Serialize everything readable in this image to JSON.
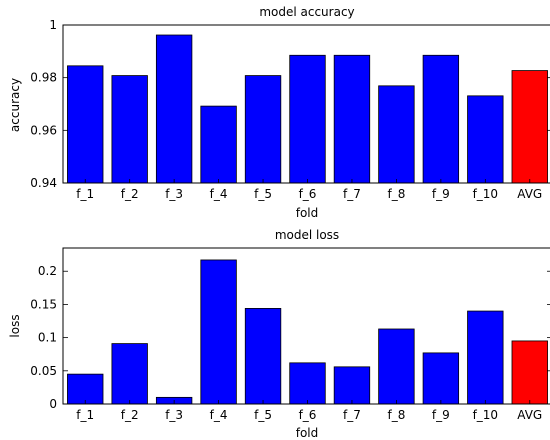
{
  "chart_data": [
    {
      "type": "bar",
      "title": "model accuracy",
      "xlabel": "fold",
      "ylabel": "accuracy",
      "categories": [
        "f_1",
        "f_2",
        "f_3",
        "f_4",
        "f_5",
        "f_6",
        "f_7",
        "f_8",
        "f_9",
        "f_10",
        "AVG"
      ],
      "values": [
        0.9845,
        0.9808,
        0.9962,
        0.9692,
        0.9808,
        0.9885,
        0.9885,
        0.9769,
        0.9885,
        0.9731,
        0.9827
      ],
      "ylim": [
        0.94,
        1.0
      ],
      "yticks": [
        0.94,
        0.96,
        0.98,
        1.0
      ],
      "ytick_labels": [
        "0.94",
        "0.96",
        "0.98",
        "1"
      ],
      "bar_color": "#0000ff",
      "highlight_color": "#ff0000",
      "highlight_category": "AVG",
      "grid": false,
      "legend": "none"
    },
    {
      "type": "bar",
      "title": "model loss",
      "xlabel": "fold",
      "ylabel": "loss",
      "categories": [
        "f_1",
        "f_2",
        "f_3",
        "f_4",
        "f_5",
        "f_6",
        "f_7",
        "f_8",
        "f_9",
        "f_10",
        "AVG"
      ],
      "values": [
        0.045,
        0.091,
        0.01,
        0.217,
        0.144,
        0.062,
        0.056,
        0.113,
        0.077,
        0.14,
        0.095
      ],
      "ylim": [
        0,
        0.235
      ],
      "yticks": [
        0,
        0.05,
        0.1,
        0.15,
        0.2
      ],
      "ytick_labels": [
        "0",
        "0.05",
        "0.1",
        "0.15",
        "0.2"
      ],
      "bar_color": "#0000ff",
      "highlight_color": "#ff0000",
      "highlight_category": "AVG",
      "grid": false,
      "legend": "none"
    }
  ]
}
